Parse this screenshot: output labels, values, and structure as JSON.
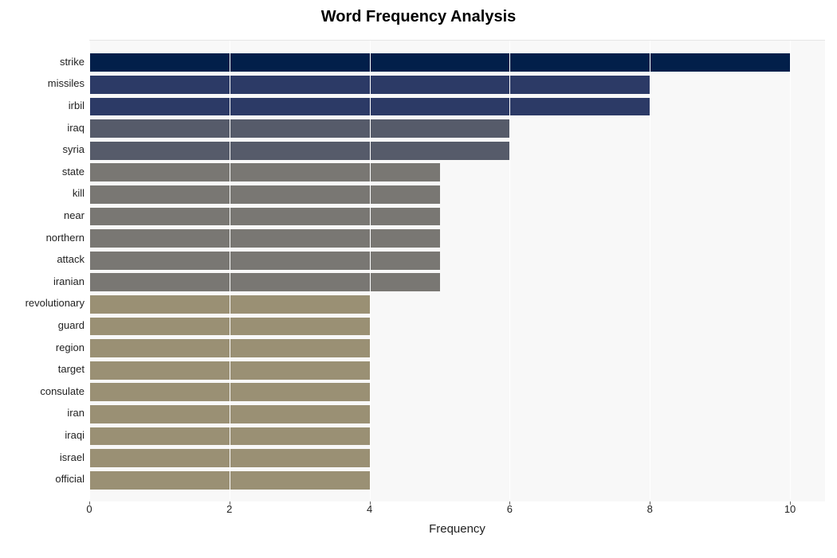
{
  "chart": {
    "type": "bar-horizontal",
    "title": "Word Frequency Analysis",
    "title_fontsize": 20,
    "title_fontweight": "bold",
    "title_color": "#000000",
    "xlabel": "Frequency",
    "xlabel_fontsize": 15,
    "xlabel_color": "#222222",
    "xlim": [
      0,
      10.5
    ],
    "xtick_step": 2,
    "xticks": [
      0,
      2,
      4,
      6,
      8,
      10
    ],
    "tick_fontsize": 13,
    "tick_color": "#222222",
    "plot_bg": "#f8f8f8",
    "grid_color": "#ffffff",
    "page_bg": "#ffffff",
    "bar_height_ratio": 0.82,
    "categories": [
      "strike",
      "missiles",
      "irbil",
      "iraq",
      "syria",
      "state",
      "kill",
      "near",
      "northern",
      "attack",
      "iranian",
      "revolutionary",
      "guard",
      "region",
      "target",
      "consulate",
      "iran",
      "iraqi",
      "israel",
      "official"
    ],
    "values": [
      10,
      8,
      8,
      6,
      6,
      5,
      5,
      5,
      5,
      5,
      5,
      4,
      4,
      4,
      4,
      4,
      4,
      4,
      4,
      4
    ],
    "bar_colors": [
      "#021f4a",
      "#2c3a66",
      "#2c3a66",
      "#565b6a",
      "#565b6a",
      "#797773",
      "#797773",
      "#797773",
      "#797773",
      "#797773",
      "#797773",
      "#9a9074",
      "#9a9074",
      "#9a9074",
      "#9a9074",
      "#9a9074",
      "#9a9074",
      "#9a9074",
      "#9a9074",
      "#9a9074"
    ]
  }
}
